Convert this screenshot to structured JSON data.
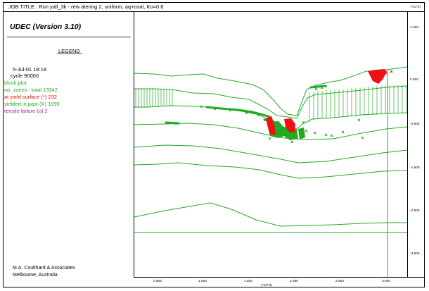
{
  "header": {
    "job_title": "JOB TITLE :  Run yall_3k - rew atering 2, uniform, aq+coal, Ko=0.6",
    "exponent_top": "(*10^2)"
  },
  "sidebar": {
    "version": "UDEC (Version 3.10)",
    "legend_title": "LEGEND",
    "date": "5-Jul-01  18:18",
    "cycle": "cycle   90000",
    "lines": [
      {
        "text": "block plot",
        "color": "#22aa22"
      },
      {
        "text": "no. zones : total    13342",
        "color": "#22aa22"
      },
      {
        "text": "at yield surface (*)    232",
        "color": "#ee1111"
      },
      {
        "text": "yielded in past  (X)   1159",
        "color": "#22aa22"
      },
      {
        "text": "tensile failure  (o)     2",
        "color": "#aa22aa"
      }
    ],
    "company": "M.A. Coulthard & Associates",
    "location": "Melbourne, Australia"
  },
  "axes": {
    "x_ticks": [
      "0.500",
      "1.000",
      "1.500",
      "2.000",
      "2.500",
      "3.000"
    ],
    "y_ticks": [
      "1.500",
      "0.500",
      "-0.500",
      "-1.500",
      "-2.500",
      "-3.500"
    ],
    "x_exponent": "(*10^3)"
  },
  "colors": {
    "block": "#22aa22",
    "yield_now": "#ee1111",
    "tensile": "#aa22aa",
    "frame": "#000000"
  }
}
